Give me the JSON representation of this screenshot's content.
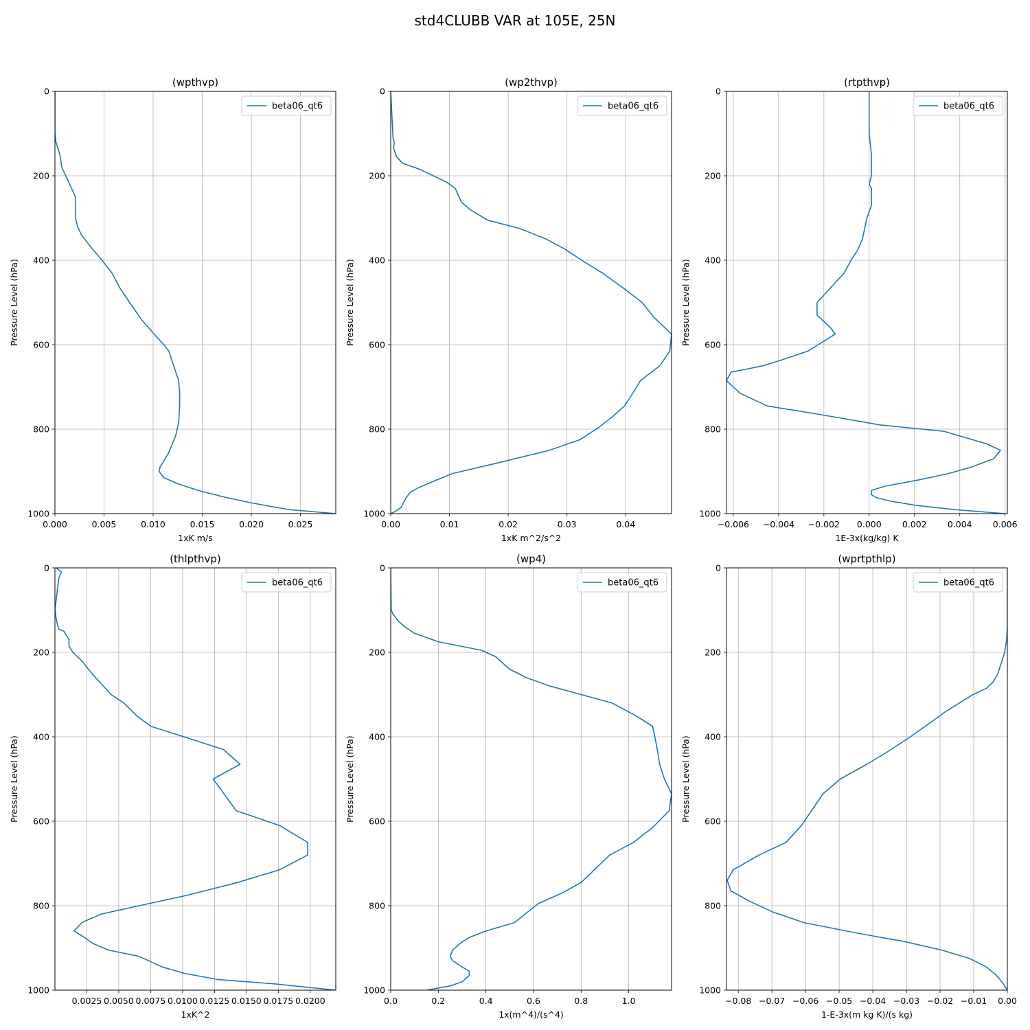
{
  "figure": {
    "title": "std4CLUBB VAR at 105E, 25N"
  },
  "chart_data": [
    {
      "type": "line",
      "title": "(wpthvp)",
      "xlabel": "1xK m/s",
      "ylabel": "Pressure Level (hPa)",
      "xlim": [
        0,
        0.0286
      ],
      "ylim": [
        1000,
        0
      ],
      "y_inverted": true,
      "grid": true,
      "legend": "upper right",
      "xticks": [
        0,
        0.005,
        0.01,
        0.015,
        0.02,
        0.025
      ],
      "xtick_labels": [
        "0.000",
        "0.005",
        "0.010",
        "0.015",
        "0.020",
        "0.025"
      ],
      "yticks": [
        0,
        200,
        400,
        600,
        800,
        1000
      ],
      "ytick_labels": [
        "0",
        "200",
        "400",
        "600",
        "800",
        "1000"
      ],
      "series": [
        {
          "name": "beta06_qt6",
          "color": "#1f77b4",
          "x": [
            0,
            0,
            0.0001,
            0.0003,
            0.0005,
            0.0007,
            0.0012,
            0.0017,
            0.0021,
            0.0021,
            0.0021,
            0.0023,
            0.0027,
            0.0037,
            0.0048,
            0.0058,
            0.0066,
            0.0076,
            0.0088,
            0.0101,
            0.0111,
            0.0116,
            0.0121,
            0.0126,
            0.0127,
            0.0127,
            0.0126,
            0.0123,
            0.0116,
            0.0111,
            0.0107,
            0.0106,
            0.0111,
            0.0126,
            0.0146,
            0.0171,
            0.0201,
            0.0237,
            0.0286
          ],
          "y": [
            0,
            100,
            120,
            135,
            150,
            180,
            205,
            230,
            250,
            280,
            300,
            320,
            340,
            370,
            400,
            430,
            465,
            500,
            540,
            575,
            600,
            615,
            650,
            685,
            715,
            745,
            785,
            815,
            855,
            875,
            890,
            900,
            915,
            930,
            945,
            960,
            975,
            990,
            1000
          ]
        }
      ]
    },
    {
      "type": "line",
      "title": "(wp2thvp)",
      "xlabel": "1xK m^2/s^2",
      "ylabel": "Pressure Level (hPa)",
      "xlim": [
        0,
        0.0478
      ],
      "ylim": [
        1000,
        0
      ],
      "y_inverted": true,
      "grid": true,
      "legend": "upper right",
      "xticks": [
        0,
        0.01,
        0.02,
        0.03,
        0.04
      ],
      "xtick_labels": [
        "0.00",
        "0.01",
        "0.02",
        "0.03",
        "0.04"
      ],
      "yticks": [
        0,
        200,
        400,
        600,
        800,
        1000
      ],
      "ytick_labels": [
        "0",
        "200",
        "400",
        "600",
        "800",
        "1000"
      ],
      "series": [
        {
          "name": "beta06_qt6",
          "color": "#1f77b4",
          "x": [
            0,
            0.0004,
            0.0006,
            0.0005,
            0.001,
            0.002,
            0.005,
            0.0095,
            0.011,
            0.012,
            0.0135,
            0.0165,
            0.022,
            0.0265,
            0.0298,
            0.0325,
            0.036,
            0.0395,
            0.0428,
            0.0448,
            0.0478,
            0.0475,
            0.0458,
            0.0425,
            0.0412,
            0.0398,
            0.0378,
            0.0355,
            0.0322,
            0.027,
            0.0182,
            0.0105,
            0.007,
            0.0045,
            0.0033,
            0.0025,
            0.0018,
            0.0008,
            0
          ],
          "y": [
            0,
            110,
            120,
            135,
            155,
            170,
            185,
            215,
            230,
            262,
            280,
            305,
            325,
            350,
            375,
            400,
            430,
            465,
            500,
            535,
            575,
            615,
            650,
            685,
            715,
            745,
            770,
            795,
            825,
            850,
            880,
            905,
            925,
            940,
            950,
            965,
            985,
            995,
            1000
          ]
        }
      ]
    },
    {
      "type": "line",
      "title": "(rtpthvp)",
      "xlabel": "1E-3x(kg/kg) K",
      "ylabel": "Pressure Level (hPa)",
      "xlim": [
        -0.0063,
        0.0061
      ],
      "ylim": [
        1000,
        0
      ],
      "y_inverted": true,
      "grid": true,
      "legend": "upper right",
      "xticks": [
        -0.006,
        -0.004,
        -0.002,
        0,
        0.002,
        0.004,
        0.006
      ],
      "xtick_labels": [
        "−0.006",
        "−0.004",
        "−0.002",
        "0.000",
        "0.002",
        "0.004",
        "0.006"
      ],
      "yticks": [
        0,
        200,
        400,
        600,
        800,
        1000
      ],
      "ytick_labels": [
        "0",
        "200",
        "400",
        "600",
        "800",
        "1000"
      ],
      "series": [
        {
          "name": "beta06_qt6",
          "color": "#1f77b4",
          "x": [
            0,
            0,
            0.0001,
            0.0001,
            0.0001,
            0,
            0.0001,
            0.0001,
            0.0001,
            -0.0001,
            -0.0002,
            -0.0003,
            -0.0005,
            -0.0008,
            -0.0011,
            -0.0017,
            -0.0023,
            -0.0023,
            -0.0017,
            -0.0015,
            -0.0021,
            -0.0027,
            -0.0038,
            -0.0047,
            -0.0061,
            -0.0063,
            -0.0057,
            -0.0045,
            -0.0022,
            0.0005,
            0.0033,
            0.0052,
            0.0058,
            0.0055,
            0.0045,
            0.0035,
            0.0022,
            0.0007,
            0.0001,
            0.0001,
            0.0003,
            0.0009,
            0.002,
            0.0037,
            0.006
          ],
          "y": [
            0,
            100,
            150,
            180,
            200,
            220,
            230,
            250,
            270,
            300,
            325,
            350,
            375,
            400,
            430,
            465,
            500,
            530,
            560,
            575,
            595,
            615,
            635,
            650,
            665,
            685,
            715,
            745,
            765,
            790,
            805,
            835,
            850,
            870,
            890,
            905,
            920,
            935,
            945,
            955,
            962,
            970,
            980,
            990,
            1000
          ]
        }
      ]
    },
    {
      "type": "line",
      "title": "(thlpthvp)",
      "xlabel": "1xK^2",
      "ylabel": "Pressure Level (hPa)",
      "xlim": [
        0,
        0.022
      ],
      "ylim": [
        1000,
        0
      ],
      "y_inverted": true,
      "grid": true,
      "legend": "upper right",
      "xticks": [
        0.0025,
        0.005,
        0.0075,
        0.01,
        0.0125,
        0.015,
        0.0175,
        0.02
      ],
      "xtick_labels": [
        "0.0025",
        "0.0050",
        "0.0075",
        "0.0100",
        "0.0125",
        "0.0150",
        "0.0175",
        "0.0200"
      ],
      "yticks": [
        0,
        200,
        400,
        600,
        800,
        1000
      ],
      "ytick_labels": [
        "0",
        "200",
        "400",
        "600",
        "800",
        "1000"
      ],
      "series": [
        {
          "name": "beta06_qt6",
          "color": "#1f77b4",
          "x": [
            0.0001,
            0.0005,
            0.0003,
            0.0002,
            0.0001,
            0,
            0.0001,
            0.0002,
            0.0003,
            0.0007,
            0.0011,
            0.0011,
            0.0014,
            0.0021,
            0.0029,
            0.0044,
            0.0054,
            0.0064,
            0.0075,
            0.0101,
            0.0132,
            0.0145,
            0.0124,
            0.0142,
            0.0176,
            0.0198,
            0.0198,
            0.0176,
            0.0143,
            0.0104,
            0.0066,
            0.0036,
            0.0021,
            0.0015,
            0.0023,
            0.003,
            0.0042,
            0.0066,
            0.0084,
            0.0101,
            0.0128,
            0.0172,
            0.022
          ],
          "y": [
            0,
            10,
            25,
            50,
            75,
            100,
            120,
            135,
            145,
            150,
            170,
            185,
            200,
            220,
            250,
            300,
            320,
            350,
            375,
            400,
            430,
            465,
            500,
            575,
            610,
            650,
            680,
            715,
            745,
            775,
            800,
            820,
            840,
            860,
            875,
            890,
            905,
            920,
            945,
            960,
            975,
            985,
            1000
          ]
        }
      ]
    },
    {
      "type": "line",
      "title": "(wp4)",
      "xlabel": "1x(m^4)/(s^4)",
      "ylabel": "Pressure Level (hPa)",
      "xlim": [
        0,
        1.18
      ],
      "ylim": [
        1000,
        0
      ],
      "y_inverted": true,
      "grid": true,
      "legend": "upper right",
      "xticks": [
        0,
        0.2,
        0.4,
        0.6,
        0.8,
        1.0
      ],
      "xtick_labels": [
        "0.0",
        "0.2",
        "0.4",
        "0.6",
        "0.8",
        "1.0"
      ],
      "yticks": [
        0,
        200,
        400,
        600,
        800,
        1000
      ],
      "ytick_labels": [
        "0",
        "200",
        "400",
        "600",
        "800",
        "1000"
      ],
      "series": [
        {
          "name": "beta06_qt6",
          "color": "#1f77b4",
          "x": [
            0,
            0.002,
            0.01,
            0.03,
            0.06,
            0.1,
            0.2,
            0.38,
            0.44,
            0.5,
            0.57,
            0.67,
            0.8,
            0.93,
            1.03,
            1.1,
            1.11,
            1.12,
            1.13,
            1.15,
            1.18,
            1.17,
            1.1,
            1.02,
            0.92,
            0.8,
            0.72,
            0.62,
            0.52,
            0.4,
            0.33,
            0.29,
            0.26,
            0.25,
            0.26,
            0.3,
            0.33,
            0.33,
            0.3,
            0.25,
            0.15
          ],
          "y": [
            0,
            100,
            110,
            125,
            140,
            155,
            175,
            195,
            210,
            240,
            260,
            280,
            300,
            320,
            350,
            375,
            400,
            430,
            465,
            500,
            535,
            575,
            615,
            650,
            680,
            745,
            770,
            795,
            840,
            860,
            875,
            890,
            905,
            920,
            930,
            945,
            955,
            965,
            980,
            990,
            1000
          ]
        }
      ]
    },
    {
      "type": "line",
      "title": "(wprtpthlp)",
      "xlabel": "1-E-3x(m kg K)/(s kg)",
      "ylabel": "Pressure Level (hPa)",
      "xlim": [
        -0.0835,
        0
      ],
      "ylim": [
        1000,
        0
      ],
      "y_inverted": true,
      "grid": true,
      "legend": "upper right",
      "xticks": [
        -0.08,
        -0.07,
        -0.06,
        -0.05,
        -0.04,
        -0.03,
        -0.02,
        -0.01,
        0
      ],
      "xtick_labels": [
        "−0.08",
        "−0.07",
        "−0.06",
        "−0.05",
        "−0.04",
        "−0.03",
        "−0.02",
        "−0.01",
        "0.00"
      ],
      "yticks": [
        0,
        200,
        400,
        600,
        800,
        1000
      ],
      "ytick_labels": [
        "0",
        "200",
        "400",
        "600",
        "800",
        "1000"
      ],
      "series": [
        {
          "name": "beta06_qt6",
          "color": "#1f77b4",
          "x": [
            0,
            0,
            0,
            -0.0002,
            -0.0008,
            -0.0018,
            -0.0028,
            -0.0042,
            -0.0062,
            -0.0102,
            -0.0183,
            -0.0288,
            -0.0355,
            -0.0418,
            -0.0497,
            -0.0548,
            -0.0578,
            -0.0612,
            -0.0658,
            -0.0738,
            -0.0815,
            -0.0833,
            -0.0822,
            -0.0765,
            -0.0697,
            -0.0605,
            -0.0445,
            -0.0305,
            -0.0195,
            -0.0112,
            -0.0062,
            -0.0032,
            -0.0012,
            0
          ],
          "y": [
            0,
            100,
            140,
            170,
            200,
            225,
            250,
            270,
            285,
            300,
            340,
            400,
            435,
            465,
            500,
            535,
            570,
            610,
            650,
            680,
            715,
            740,
            765,
            790,
            815,
            840,
            865,
            885,
            905,
            925,
            945,
            965,
            985,
            1000
          ]
        }
      ]
    }
  ]
}
